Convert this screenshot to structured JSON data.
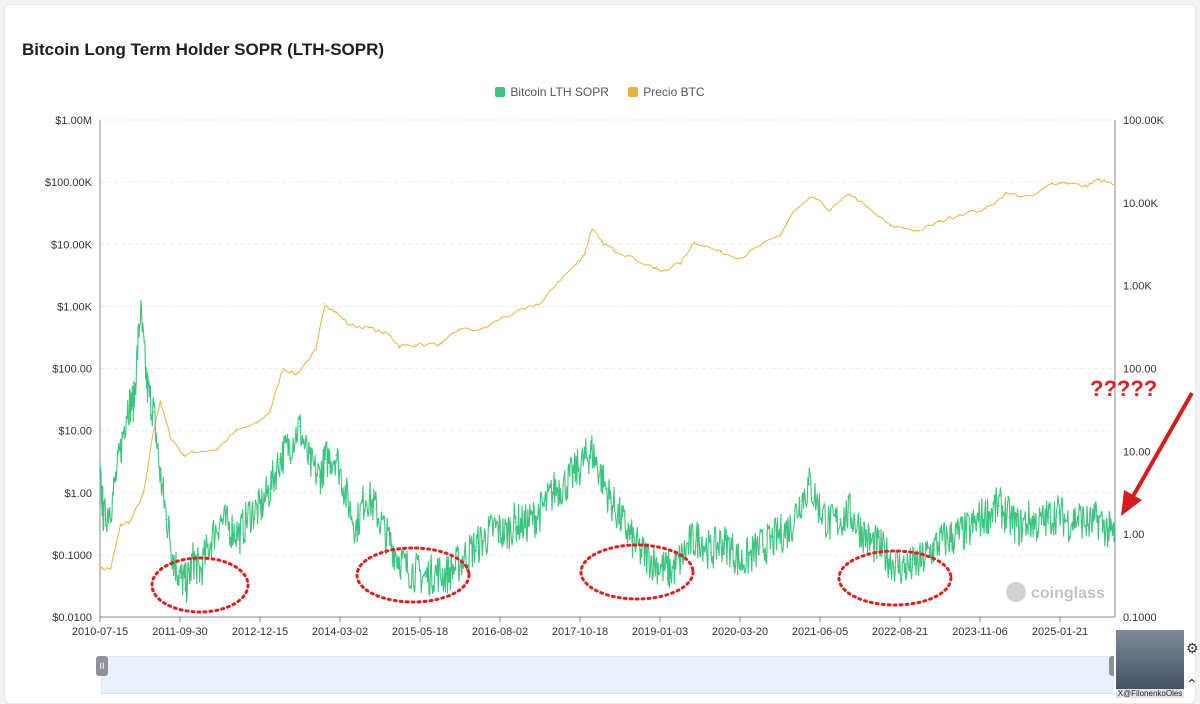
{
  "chart_data": {
    "type": "line",
    "title": "Bitcoin Long Term Holder SOPR (LTH-SOPR)",
    "legend": [
      {
        "name": "Bitcoin LTH SOPR",
        "color": "#3dc47e"
      },
      {
        "name": "Precio BTC",
        "color": "#e8b440"
      }
    ],
    "legend_position": "top-center",
    "y_left_ticks": [
      "$1.00M",
      "$100.00K",
      "$10.00K",
      "$1.00K",
      "$100.00",
      "$10.00",
      "$1.00",
      "$0.1000",
      "$0.0100"
    ],
    "y_right_ticks": [
      "100.00K",
      "10.00K",
      "1.00K",
      "100.00",
      "10.00",
      "1.00",
      "0.1000"
    ],
    "x_ticks": [
      "2010-07-15",
      "2011-09-30",
      "2012-12-15",
      "2014-03-02",
      "2015-05-18",
      "2016-08-02",
      "2017-10-18",
      "2019-01-03",
      "2020-03-20",
      "2021-06-05",
      "2022-08-21",
      "2023-11-06",
      "2025-01-21"
    ],
    "y_left_range": [
      0.01,
      1000000
    ],
    "y_right_range": [
      0.1,
      100000
    ],
    "x_range": [
      2010.54,
      2025.85
    ],
    "series": [
      {
        "name": "Precio BTC",
        "axis": "left",
        "x": [
          2010.54,
          2010.7,
          2010.85,
          2011.0,
          2011.2,
          2011.35,
          2011.45,
          2011.6,
          2011.8,
          2011.95,
          2012.3,
          2012.6,
          2012.9,
          2013.1,
          2013.3,
          2013.5,
          2013.8,
          2013.93,
          2014.1,
          2014.3,
          2014.6,
          2014.9,
          2015.05,
          2015.3,
          2015.7,
          2015.95,
          2016.3,
          2016.6,
          2016.95,
          2017.2,
          2017.45,
          2017.7,
          2017.85,
          2017.96,
          2018.1,
          2018.3,
          2018.5,
          2018.9,
          2019.0,
          2019.3,
          2019.5,
          2019.9,
          2020.2,
          2020.5,
          2020.8,
          2021.0,
          2021.3,
          2021.55,
          2021.85,
          2022.1,
          2022.45,
          2022.9,
          2023.2,
          2023.5,
          2023.9,
          2024.2,
          2024.6,
          2024.9,
          2025.1,
          2025.4,
          2025.6,
          2025.85
        ],
        "values": [
          0.06,
          0.06,
          0.3,
          0.35,
          1.0,
          10.0,
          30.0,
          8.0,
          4.0,
          4.5,
          5.0,
          10.0,
          13.0,
          20.0,
          100.0,
          80.0,
          200.0,
          1100.0,
          800.0,
          500.0,
          450.0,
          350.0,
          230.0,
          240.0,
          250.0,
          430.0,
          420.0,
          650.0,
          900.0,
          1150.0,
          2500.0,
          4500.0,
          7000.0,
          18000.0,
          11000.0,
          8000.0,
          6500.0,
          4200.0,
          3700.0,
          5000.0,
          11000.0,
          7500.0,
          6000.0,
          9500.0,
          14000.0,
          33000.0,
          58000.0,
          35000.0,
          65000.0,
          40000.0,
          20000.0,
          16500.0,
          23000.0,
          30000.0,
          37000.0,
          65000.0,
          58000.0,
          95000.0,
          100000.0,
          85000.0,
          110000.0,
          90000.0
        ]
      },
      {
        "name": "Bitcoin LTH SOPR",
        "axis": "right",
        "x": [
          2010.54,
          2010.6,
          2010.72,
          2010.85,
          2010.95,
          2011.05,
          2011.15,
          2011.25,
          2011.35,
          2011.45,
          2011.55,
          2011.65,
          2011.75,
          2011.85,
          2011.95,
          2012.05,
          2012.2,
          2012.35,
          2012.5,
          2012.65,
          2012.8,
          2012.95,
          2013.1,
          2013.25,
          2013.4,
          2013.55,
          2013.7,
          2013.85,
          2013.95,
          2014.1,
          2014.25,
          2014.4,
          2014.55,
          2014.7,
          2014.85,
          2015.0,
          2015.15,
          2015.3,
          2015.45,
          2015.6,
          2015.75,
          2015.9,
          2016.05,
          2016.2,
          2016.35,
          2016.5,
          2016.65,
          2016.8,
          2016.95,
          2017.1,
          2017.25,
          2017.4,
          2017.55,
          2017.7,
          2017.85,
          2017.96,
          2018.1,
          2018.25,
          2018.4,
          2018.55,
          2018.7,
          2018.85,
          2019.0,
          2019.15,
          2019.3,
          2019.45,
          2019.6,
          2019.75,
          2019.9,
          2020.05,
          2020.2,
          2020.35,
          2020.5,
          2020.65,
          2020.8,
          2020.95,
          2021.1,
          2021.25,
          2021.4,
          2021.55,
          2021.7,
          2021.85,
          2022.0,
          2022.15,
          2022.3,
          2022.45,
          2022.6,
          2022.75,
          2022.9,
          2023.05,
          2023.2,
          2023.35,
          2023.5,
          2023.65,
          2023.8,
          2023.95,
          2024.1,
          2024.25,
          2024.4,
          2024.55,
          2024.7,
          2024.85,
          2025.0,
          2025.15,
          2025.3,
          2025.45,
          2025.6,
          2025.75,
          2025.85
        ],
        "values": [
          5.0,
          1.5,
          2.5,
          10.0,
          35.0,
          40.0,
          500.0,
          60.0,
          30.0,
          5.0,
          1.5,
          0.5,
          0.3,
          0.25,
          0.5,
          0.35,
          0.8,
          1.5,
          1.2,
          1.0,
          1.8,
          2.0,
          3.5,
          8.0,
          12.0,
          20.0,
          7.0,
          5.0,
          8.0,
          9.0,
          3.0,
          1.2,
          3.0,
          2.0,
          1.0,
          0.6,
          0.4,
          0.35,
          0.3,
          0.35,
          0.32,
          0.4,
          0.55,
          0.7,
          0.9,
          1.2,
          1.0,
          1.4,
          1.3,
          1.6,
          2.2,
          3.5,
          4.0,
          5.5,
          8.0,
          10.0,
          5.0,
          2.5,
          1.5,
          0.9,
          0.6,
          0.5,
          0.4,
          0.35,
          0.5,
          0.8,
          0.9,
          0.6,
          0.8,
          0.7,
          0.45,
          0.55,
          0.7,
          0.8,
          1.0,
          1.2,
          2.5,
          4.0,
          2.0,
          1.3,
          1.5,
          1.8,
          1.2,
          0.8,
          0.7,
          0.5,
          0.4,
          0.4,
          0.45,
          0.6,
          0.8,
          0.9,
          1.0,
          1.1,
          1.5,
          1.8,
          2.2,
          1.6,
          1.2,
          1.5,
          1.3,
          1.6,
          1.8,
          1.4,
          1.6,
          1.3,
          1.5,
          1.1,
          1.0
        ]
      }
    ],
    "annotations": [
      {
        "text": "?????",
        "type": "red-text"
      },
      {
        "type": "red-arrow"
      },
      {
        "type": "dotted-ellipse",
        "label": "bottom-1"
      },
      {
        "type": "dotted-ellipse",
        "label": "bottom-2"
      },
      {
        "type": "dotted-ellipse",
        "label": "bottom-3"
      },
      {
        "type": "dotted-ellipse",
        "label": "bottom-4"
      }
    ],
    "watermark": "coinglass"
  },
  "overlay": {
    "avatar_caption": "X@FilonenkoOles",
    "slider_handle_glyph": "II"
  }
}
